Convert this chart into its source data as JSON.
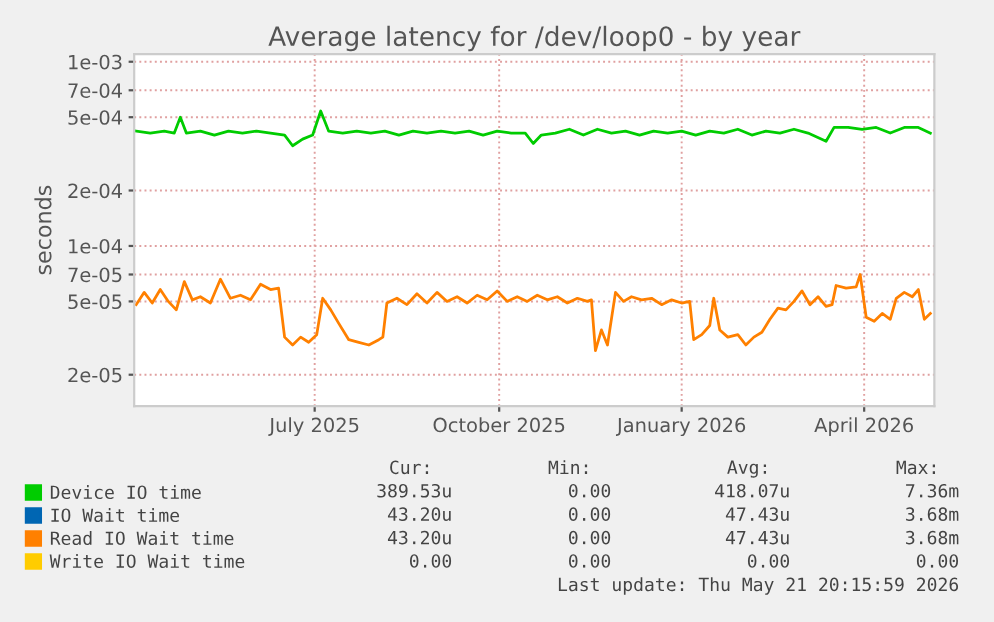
{
  "chart_data": {
    "type": "line",
    "title": "Average latency for /dev/loop0 - by year",
    "ylabel": "seconds",
    "log": "y",
    "grid": true,
    "line_style": "solid",
    "legend": "bottom left",
    "xlim": [
      "2025-04-17",
      "2026-05-21"
    ],
    "xticks": [
      {
        "value": "2025-07-16",
        "label": "July 2025"
      },
      {
        "value": "2025-10-16",
        "label": "October 2025"
      },
      {
        "value": "2026-01-15",
        "label": "January 2026"
      },
      {
        "value": "2026-04-16",
        "label": "April 2026"
      }
    ],
    "ylim": [
      1.35e-05,
      0.0011
    ],
    "yticks": [
      {
        "value": 0.001,
        "label": "1e-03"
      },
      {
        "value": 0.0007,
        "label": "7e-04"
      },
      {
        "value": 0.0005,
        "label": "5e-04"
      },
      {
        "value": 0.0002,
        "label": "2e-04"
      },
      {
        "value": 0.0001,
        "label": "1e-04"
      },
      {
        "value": 7e-05,
        "label": "7e-05"
      },
      {
        "value": 5e-05,
        "label": "5e-05"
      },
      {
        "value": 2e-05,
        "label": "2e-05"
      }
    ],
    "series": [
      {
        "name": "Device IO time",
        "color": "#00cc00",
        "x": [
          "2025-04-18",
          "2025-04-25",
          "2025-05-02",
          "2025-05-07",
          "2025-05-10",
          "2025-05-13",
          "2025-05-20",
          "2025-05-27",
          "2025-06-03",
          "2025-06-10",
          "2025-06-17",
          "2025-06-24",
          "2025-07-01",
          "2025-07-05",
          "2025-07-10",
          "2025-07-15",
          "2025-07-19",
          "2025-07-23",
          "2025-07-30",
          "2025-08-06",
          "2025-08-13",
          "2025-08-20",
          "2025-08-27",
          "2025-09-03",
          "2025-09-10",
          "2025-09-17",
          "2025-09-24",
          "2025-10-01",
          "2025-10-08",
          "2025-10-15",
          "2025-10-22",
          "2025-10-29",
          "2025-11-02",
          "2025-11-06",
          "2025-11-13",
          "2025-11-20",
          "2025-11-27",
          "2025-12-04",
          "2025-12-11",
          "2025-12-18",
          "2025-12-25",
          "2026-01-01",
          "2026-01-08",
          "2026-01-15",
          "2026-01-22",
          "2026-01-29",
          "2026-02-05",
          "2026-02-12",
          "2026-02-19",
          "2026-02-26",
          "2026-03-05",
          "2026-03-12",
          "2026-03-19",
          "2026-03-28",
          "2026-04-01",
          "2026-04-08",
          "2026-04-15",
          "2026-04-22",
          "2026-04-29",
          "2026-05-06",
          "2026-05-13",
          "2026-05-19"
        ],
        "values": [
          0.00042,
          0.00041,
          0.00042,
          0.00041,
          0.0005,
          0.00041,
          0.00042,
          0.0004,
          0.00042,
          0.00041,
          0.00042,
          0.00041,
          0.0004,
          0.00035,
          0.00038,
          0.0004,
          0.00054,
          0.00042,
          0.00041,
          0.00042,
          0.00041,
          0.00042,
          0.0004,
          0.00042,
          0.00041,
          0.00042,
          0.00041,
          0.00042,
          0.0004,
          0.00042,
          0.00041,
          0.00041,
          0.00036,
          0.0004,
          0.00041,
          0.00043,
          0.0004,
          0.00043,
          0.00041,
          0.00042,
          0.0004,
          0.00042,
          0.00041,
          0.00042,
          0.0004,
          0.00042,
          0.00041,
          0.00043,
          0.0004,
          0.00042,
          0.00041,
          0.00043,
          0.00041,
          0.00037,
          0.00044,
          0.00044,
          0.00043,
          0.00044,
          0.00041,
          0.00044,
          0.00044,
          0.00041
        ]
      },
      {
        "name": "IO Wait time",
        "color": "#0066b3"
      },
      {
        "name": "Read IO Wait time",
        "color": "#ff8000",
        "x": [
          "2025-04-18",
          "2025-04-22",
          "2025-04-26",
          "2025-04-30",
          "2025-05-04",
          "2025-05-08",
          "2025-05-12",
          "2025-05-16",
          "2025-05-20",
          "2025-05-25",
          "2025-05-30",
          "2025-06-04",
          "2025-06-09",
          "2025-06-14",
          "2025-06-19",
          "2025-06-24",
          "2025-06-28",
          "2025-07-01",
          "2025-07-05",
          "2025-07-09",
          "2025-07-13",
          "2025-07-17",
          "2025-07-20",
          "2025-07-24",
          "2025-07-28",
          "2025-08-02",
          "2025-08-07",
          "2025-08-12",
          "2025-08-17",
          "2025-08-19",
          "2025-08-21",
          "2025-08-26",
          "2025-08-31",
          "2025-09-05",
          "2025-09-10",
          "2025-09-15",
          "2025-09-20",
          "2025-09-25",
          "2025-09-30",
          "2025-10-05",
          "2025-10-10",
          "2025-10-15",
          "2025-10-20",
          "2025-10-25",
          "2025-10-30",
          "2025-11-04",
          "2025-11-09",
          "2025-11-14",
          "2025-11-19",
          "2025-11-24",
          "2025-11-29",
          "2025-12-01",
          "2025-12-03",
          "2025-12-06",
          "2025-12-09",
          "2025-12-13",
          "2025-12-17",
          "2025-12-21",
          "2025-12-26",
          "2025-12-31",
          "2026-01-05",
          "2026-01-10",
          "2026-01-15",
          "2026-01-19",
          "2026-01-21",
          "2026-01-25",
          "2026-01-29",
          "2026-01-31",
          "2026-02-03",
          "2026-02-07",
          "2026-02-12",
          "2026-02-16",
          "2026-02-20",
          "2026-02-24",
          "2026-02-28",
          "2026-03-04",
          "2026-03-08",
          "2026-03-12",
          "2026-03-16",
          "2026-03-20",
          "2026-03-24",
          "2026-03-28",
          "2026-03-31",
          "2026-04-02",
          "2026-04-07",
          "2026-04-12",
          "2026-04-14",
          "2026-04-17",
          "2026-04-21",
          "2026-04-25",
          "2026-04-29",
          "2026-05-02",
          "2026-05-06",
          "2026-05-10",
          "2026-05-13",
          "2026-05-16",
          "2026-05-19"
        ],
        "values": [
          4.8e-05,
          5.6e-05,
          4.9e-05,
          5.8e-05,
          5e-05,
          4.5e-05,
          6.4e-05,
          5.1e-05,
          5.3e-05,
          4.9e-05,
          6.6e-05,
          5.2e-05,
          5.4e-05,
          5.1e-05,
          6.2e-05,
          5.8e-05,
          5.9e-05,
          3.2e-05,
          2.9e-05,
          3.2e-05,
          3e-05,
          3.3e-05,
          5.2e-05,
          4.5e-05,
          3.8e-05,
          3.1e-05,
          3e-05,
          2.9e-05,
          3.1e-05,
          3.2e-05,
          4.9e-05,
          5.2e-05,
          4.8e-05,
          5.5e-05,
          4.9e-05,
          5.6e-05,
          5e-05,
          5.3e-05,
          4.9e-05,
          5.4e-05,
          5.1e-05,
          5.7e-05,
          5e-05,
          5.3e-05,
          5e-05,
          5.4e-05,
          5.1e-05,
          5.3e-05,
          4.9e-05,
          5.2e-05,
          5e-05,
          5.1e-05,
          2.7e-05,
          3.5e-05,
          2.9e-05,
          5.6e-05,
          5e-05,
          5.3e-05,
          5.1e-05,
          5.2e-05,
          4.8e-05,
          5.1e-05,
          4.9e-05,
          5e-05,
          3.1e-05,
          3.3e-05,
          3.7e-05,
          5.2e-05,
          3.5e-05,
          3.2e-05,
          3.3e-05,
          2.9e-05,
          3.2e-05,
          3.4e-05,
          4e-05,
          4.6e-05,
          4.5e-05,
          5e-05,
          5.7e-05,
          4.8e-05,
          5.3e-05,
          4.7e-05,
          4.8e-05,
          6.1e-05,
          5.9e-05,
          6e-05,
          7e-05,
          4.1e-05,
          3.9e-05,
          4.3e-05,
          4e-05,
          5.2e-05,
          5.6e-05,
          5.3e-05,
          5.8e-05,
          4e-05,
          4.3e-05
        ]
      },
      {
        "name": "Write IO Wait time",
        "color": "#ffcc00"
      }
    ],
    "annotations": [
      "Cur:",
      "Min:",
      "Avg:",
      "Max:",
      "389.53u",
      "0.00",
      "418.07u",
      "7.36m",
      "43.20u",
      "0.00",
      "47.43u",
      "3.68m",
      "43.20u",
      "0.00",
      "47.43u",
      "3.68m",
      "0.00",
      "0.00",
      "0.00",
      "0.00",
      "Last update: Thu May 21 20:15:59 2026"
    ]
  }
}
